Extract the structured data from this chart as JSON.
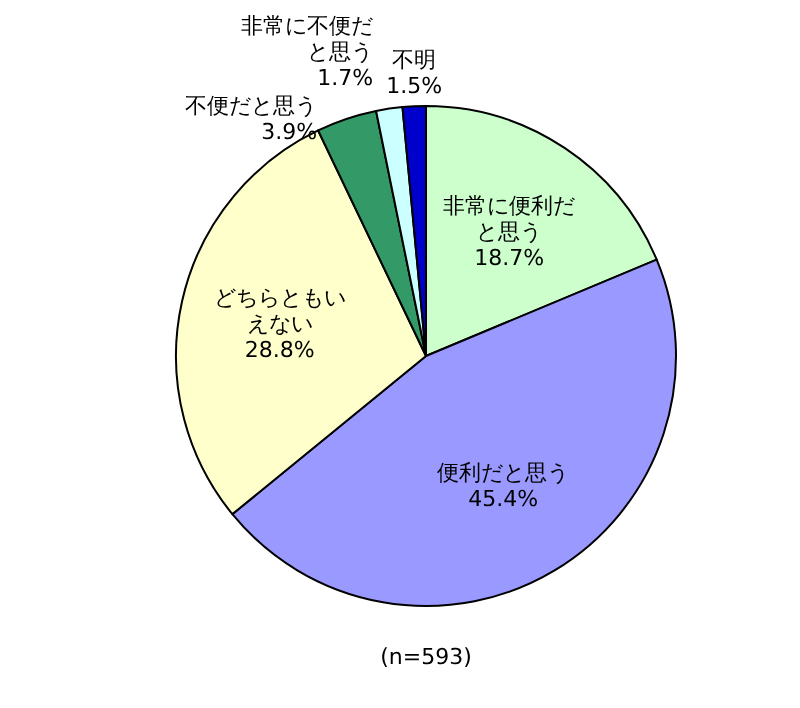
{
  "chart_data": {
    "type": "pie",
    "categories": [
      "非常に便利だと思う",
      "便利だと思う",
      "どちらともいえない",
      "不便だと思う",
      "非常に不便だと思う",
      "不明"
    ],
    "values": [
      18.7,
      45.4,
      28.8,
      3.9,
      1.7,
      1.5
    ],
    "value_labels": [
      "18.7%",
      "45.4%",
      "28.8%",
      "3.9%",
      "1.7%",
      "1.5%"
    ],
    "colors": [
      "#ccffcc",
      "#9999ff",
      "#ffffcc",
      "#339966",
      "#ccffff",
      "#0000cc"
    ],
    "annotations": [
      "(n=593)"
    ]
  }
}
